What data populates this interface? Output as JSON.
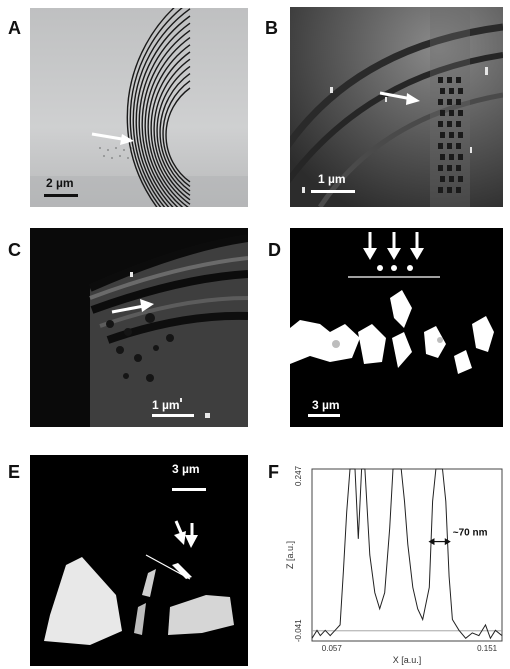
{
  "figure": {
    "panels": [
      {
        "letter": "A",
        "scale": "2 µm"
      },
      {
        "letter": "B",
        "scale": "1 µm"
      },
      {
        "letter": "C",
        "scale": "1 µm"
      },
      {
        "letter": "D",
        "scale": "3 µm"
      },
      {
        "letter": "E",
        "scale": "3 µm"
      },
      {
        "letter": "F"
      }
    ]
  },
  "chart_data": {
    "type": "line",
    "xlabel": "X [a.u.]",
    "ylabel": "Z [a.u.]",
    "x_ticks": [
      "0.057",
      "0.151"
    ],
    "y_ticks": [
      "0.247",
      "-0.041"
    ],
    "xlim": [
      0.045,
      0.16
    ],
    "ylim": [
      -0.06,
      0.26
    ],
    "annotation": "~70 nm",
    "series": [
      {
        "values": [
          [
            0.045,
            -0.055
          ],
          [
            0.048,
            -0.04
          ],
          [
            0.05,
            -0.05
          ],
          [
            0.053,
            -0.04
          ],
          [
            0.056,
            -0.05
          ],
          [
            0.059,
            -0.04
          ],
          [
            0.062,
            -0.03
          ],
          [
            0.064,
            0.07
          ],
          [
            0.066,
            0.18
          ],
          [
            0.068,
            0.26
          ],
          [
            0.071,
            0.26
          ],
          [
            0.073,
            0.13
          ],
          [
            0.075,
            0.26
          ],
          [
            0.077,
            0.26
          ],
          [
            0.08,
            0.1
          ],
          [
            0.083,
            0.03
          ],
          [
            0.086,
            0.0
          ],
          [
            0.089,
            0.03
          ],
          [
            0.092,
            0.15
          ],
          [
            0.094,
            0.26
          ],
          [
            0.099,
            0.26
          ],
          [
            0.101,
            0.2
          ],
          [
            0.103,
            0.12
          ],
          [
            0.106,
            0.04
          ],
          [
            0.109,
            0.0
          ],
          [
            0.112,
            -0.02
          ],
          [
            0.116,
            0.04
          ],
          [
            0.118,
            0.2
          ],
          [
            0.12,
            0.26
          ],
          [
            0.124,
            0.26
          ],
          [
            0.126,
            0.2
          ],
          [
            0.128,
            0.06
          ],
          [
            0.13,
            -0.02
          ],
          [
            0.134,
            -0.04
          ],
          [
            0.138,
            -0.055
          ],
          [
            0.142,
            -0.045
          ],
          [
            0.146,
            -0.05
          ],
          [
            0.15,
            -0.03
          ],
          [
            0.153,
            -0.055
          ],
          [
            0.156,
            -0.04
          ],
          [
            0.16,
            -0.05
          ]
        ]
      }
    ]
  }
}
